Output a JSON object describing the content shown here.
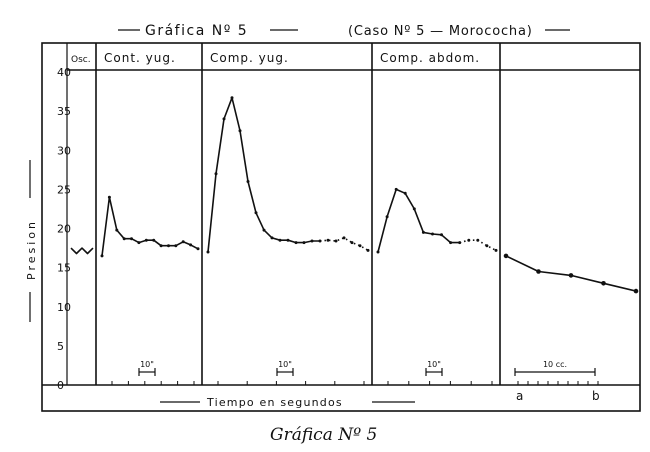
{
  "chart_data": {
    "type": "line",
    "title": "Gráfica Nº 5",
    "subtitle": "(Caso Nº 5 — Morococha)",
    "caption": "Gráfica Nº 5",
    "ylabel": "Presion",
    "xlabel": "Tiempo en segundos",
    "ylim": [
      0,
      40
    ],
    "yticks": [
      "0",
      "5",
      "10",
      "15",
      "20",
      "25",
      "30",
      "35",
      "40"
    ],
    "grid": false,
    "panels": [
      {
        "label": "Osc.",
        "series": [
          {
            "x": [
              0,
              1,
              2,
              3,
              4
            ],
            "y": [
              17.5,
              16.8,
              17.5,
              16.8,
              17.5
            ],
            "dotted_from": null
          }
        ]
      },
      {
        "label": "Cont. yug.",
        "scale_label": "10\"",
        "series": [
          {
            "x": [
              0,
              1,
              2,
              3,
              4,
              5,
              6,
              7,
              8,
              9,
              10,
              11,
              12,
              13
            ],
            "y": [
              16.5,
              24,
              19.8,
              18.7,
              18.7,
              18.2,
              18.5,
              18.5,
              17.8,
              17.8,
              17.8,
              18.3,
              17.9,
              17.4
            ],
            "dotted_from": null
          }
        ]
      },
      {
        "label": "Comp. yug.",
        "scale_label": "10\"",
        "series": [
          {
            "x": [
              0,
              1,
              2,
              3,
              4,
              5,
              6,
              7,
              8,
              9,
              10,
              11,
              12,
              13,
              14,
              15,
              16,
              17,
              18,
              19,
              20
            ],
            "y": [
              17,
              27,
              34,
              36.7,
              32.5,
              26,
              22,
              19.8,
              18.8,
              18.5,
              18.5,
              18.2,
              18.2,
              18.4,
              18.4,
              18.5,
              18.4,
              18.8,
              18.2,
              17.8,
              17.2
            ],
            "dotted_from": 14
          }
        ]
      },
      {
        "label": "Comp. abdom.",
        "scale_label": "10\"",
        "series": [
          {
            "x": [
              0,
              1,
              2,
              3,
              4,
              5,
              6,
              7,
              8,
              9,
              10,
              11,
              12,
              13
            ],
            "y": [
              17,
              21.5,
              25,
              24.5,
              22.5,
              19.5,
              19.3,
              19.2,
              18.2,
              18.2,
              18.5,
              18.5,
              17.8,
              17.2
            ],
            "dotted_from": 9
          }
        ]
      },
      {
        "label": "",
        "scale_label": "10 cc.",
        "x_endpoints": [
          "a",
          "b"
        ],
        "series": [
          {
            "x": [
              0,
              1,
              2,
              3,
              4
            ],
            "y": [
              16.5,
              14.5,
              14.0,
              13.0,
              12.0
            ],
            "dotted_from": null
          }
        ]
      }
    ]
  }
}
